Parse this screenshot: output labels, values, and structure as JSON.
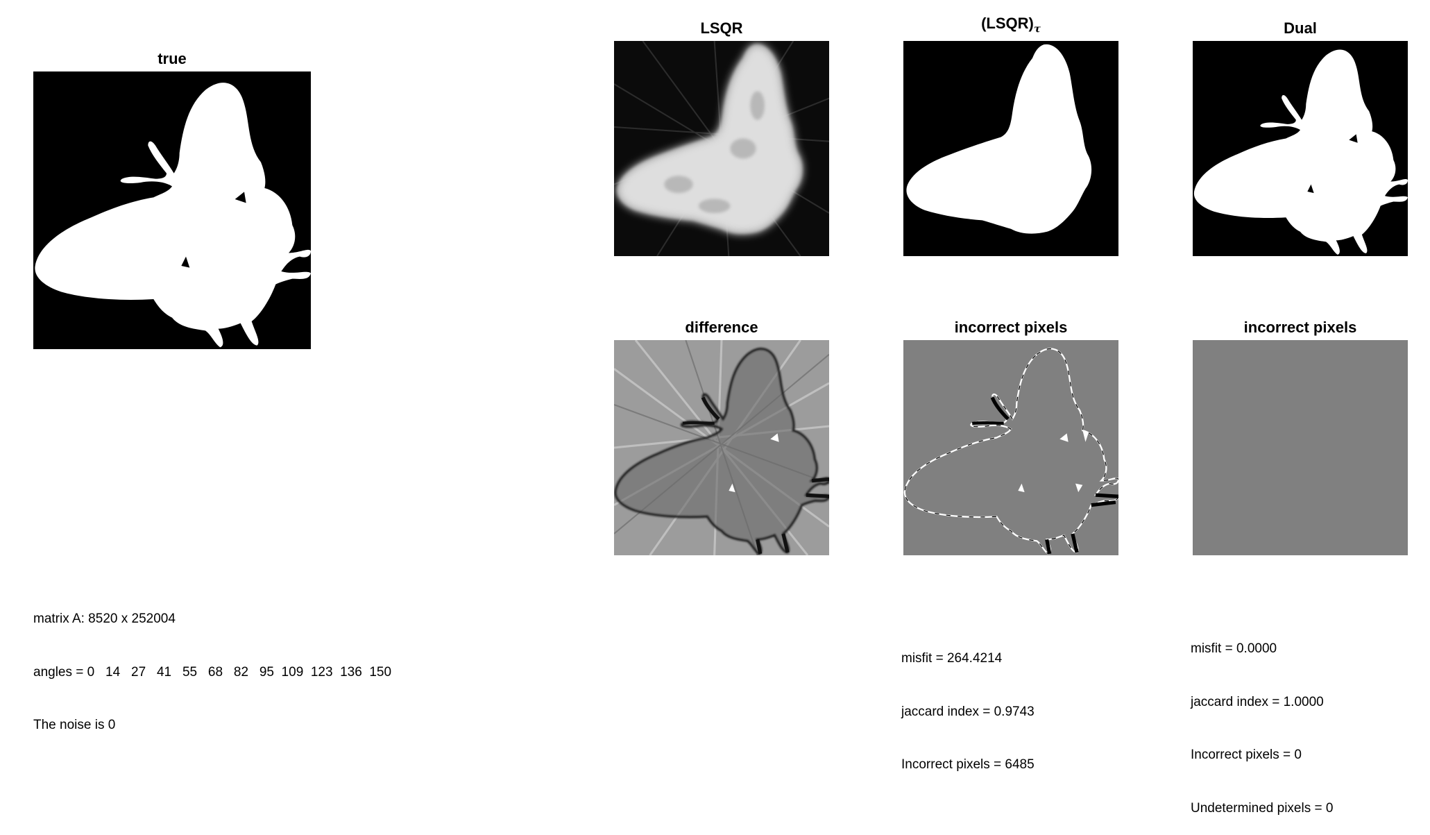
{
  "panels": {
    "true": {
      "title": "true"
    },
    "lsqr": {
      "title": "LSQR"
    },
    "lsqr_tau": {
      "title": "(LSQR)",
      "subscript": "τ"
    },
    "dual": {
      "title": "Dual"
    },
    "difference": {
      "title": "difference"
    },
    "incorrect_lsqr": {
      "title": "incorrect pixels"
    },
    "incorrect_dual": {
      "title": "incorrect pixels"
    }
  },
  "info": {
    "matrix": "matrix A: 8520 x 252004",
    "angles": "angles = 0   14   27   41   55   68   82   95  109  123  136  150",
    "noise": "The noise is 0"
  },
  "lsqr_stats": {
    "misfit": "misfit = 264.4214",
    "jaccard": "jaccard index = 0.9743",
    "incorrect": "Incorrect pixels = 6485"
  },
  "dual_stats": {
    "misfit": "misfit = 0.0000",
    "jaccard": "jaccard index = 1.0000",
    "incorrect": "Incorrect pixels = 0",
    "undetermined": "Undetermined pixels = 0"
  },
  "colors": {
    "background": "#000000",
    "foreground": "#ffffff",
    "neutral_gray": "#808080"
  }
}
